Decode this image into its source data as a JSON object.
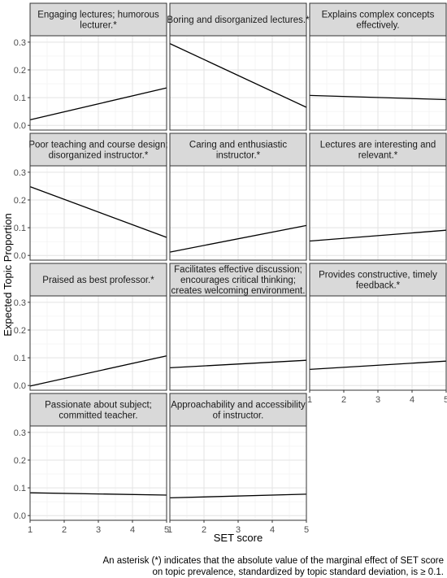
{
  "chart_data": {
    "type": "line",
    "layout": "facet-grid",
    "xlabel": "SET score",
    "ylabel": "Expected Topic Proportion",
    "xlim": [
      1,
      5
    ],
    "ylim": [
      0,
      0.3
    ],
    "xticks": [
      1,
      2,
      3,
      4,
      5
    ],
    "yticks": [
      0.0,
      0.1,
      0.2,
      0.3
    ],
    "ytick_labels": [
      "0.0",
      "0.1",
      "0.2",
      "0.3"
    ],
    "grid": true,
    "line_color": "#000000",
    "strip_color": "#d9d9d9",
    "panels": [
      {
        "title": [
          "Engaging lectures; humorous",
          "lecturer.*"
        ],
        "x": [
          1,
          5
        ],
        "y": [
          0.02,
          0.135
        ]
      },
      {
        "title": [
          "Boring and disorganized lectures.*"
        ],
        "x": [
          1,
          5
        ],
        "y": [
          0.295,
          0.065
        ]
      },
      {
        "title": [
          "Explains complex concepts",
          "effectively."
        ],
        "x": [
          1,
          5
        ],
        "y": [
          0.108,
          0.093
        ]
      },
      {
        "title": [
          "Poor teaching and course design;",
          "disorganized instructor.*"
        ],
        "x": [
          1,
          5
        ],
        "y": [
          0.248,
          0.065
        ]
      },
      {
        "title": [
          "Caring and enthusiastic",
          "instructor.*"
        ],
        "x": [
          1,
          5
        ],
        "y": [
          0.012,
          0.108
        ]
      },
      {
        "title": [
          "Lectures are interesting and",
          "relevant.*"
        ],
        "x": [
          1,
          5
        ],
        "y": [
          0.052,
          0.091
        ]
      },
      {
        "title": [
          "Praised as best professor.*"
        ],
        "x": [
          1,
          5
        ],
        "y": [
          -0.002,
          0.107
        ]
      },
      {
        "title": [
          "Facilitates effective discussion;",
          "encourages critical thinking;",
          "creates welcoming environment."
        ],
        "x": [
          1,
          5
        ],
        "y": [
          0.064,
          0.091
        ]
      },
      {
        "title": [
          "Provides constructive, timely",
          "feedback.*"
        ],
        "x": [
          1,
          5
        ],
        "y": [
          0.058,
          0.088
        ]
      },
      {
        "title": [
          "Passionate about subject;",
          "committed teacher."
        ],
        "x": [
          1,
          5
        ],
        "y": [
          0.082,
          0.074
        ]
      },
      {
        "title": [
          "Approachability and accessibility",
          "of instructor."
        ],
        "x": [
          1,
          5
        ],
        "y": [
          0.064,
          0.077
        ]
      }
    ]
  },
  "caption": {
    "line1": "An asterisk (*) indicates that the absolute value of the marginal effect of SET score",
    "line2": "on topic prevalence, standardized by topic standard deviation, is ≥ 0.1."
  }
}
